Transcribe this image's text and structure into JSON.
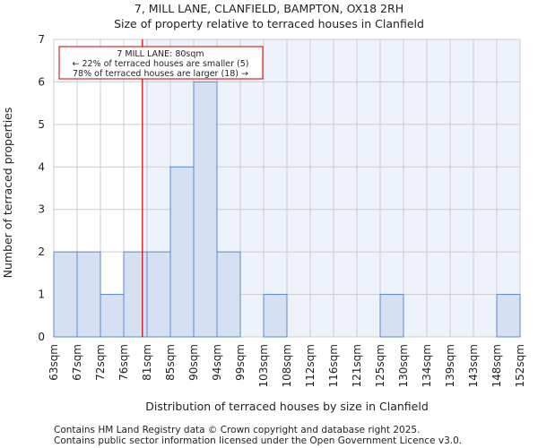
{
  "chart_data": {
    "type": "bar",
    "title": "7, MILL LANE, CLANFIELD, BAMPTON, OX18 2RH",
    "subtitle": "Size of property relative to terraced houses in Clanfield",
    "xlabel": "Distribution of terraced houses by size in Clanfield",
    "ylabel": "Number of terraced properties",
    "x_tick_labels": [
      "63sqm",
      "67sqm",
      "72sqm",
      "76sqm",
      "81sqm",
      "85sqm",
      "90sqm",
      "94sqm",
      "99sqm",
      "103sqm",
      "108sqm",
      "112sqm",
      "116sqm",
      "121sqm",
      "125sqm",
      "130sqm",
      "134sqm",
      "139sqm",
      "143sqm",
      "148sqm",
      "152sqm"
    ],
    "values": [
      2,
      2,
      1,
      2,
      2,
      4,
      6,
      2,
      0,
      1,
      0,
      0,
      0,
      0,
      1,
      0,
      0,
      0,
      0,
      1
    ],
    "y_ticks": [
      0,
      1,
      2,
      3,
      4,
      5,
      6,
      7
    ],
    "ylim": [
      0,
      7
    ],
    "grid": true,
    "marker": {
      "value_sqm": 80,
      "color": "#cc0000"
    },
    "annotation": {
      "line1": "7 MILL LANE: 80sqm",
      "line2": "← 22% of terraced houses are smaller (5)",
      "line3": "78% of terraced houses are larger (18) →"
    },
    "colors": {
      "bar_fill": "#d6e0f3",
      "bar_stroke": "#5a8ad0",
      "bg_right": "#eef2fb",
      "grid": "#cccccc"
    }
  },
  "footer": {
    "line1": "Contains HM Land Registry data © Crown copyright and database right 2025.",
    "line2": "Contains public sector information licensed under the Open Government Licence v3.0."
  }
}
